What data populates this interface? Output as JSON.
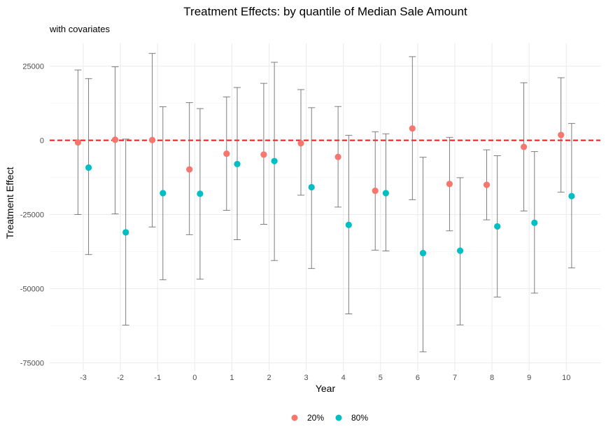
{
  "chart_data": {
    "type": "scatter",
    "title": "Treatment Effects: by quantile of Median Sale Amount",
    "subtitle": "with covariates",
    "xlabel": "Year",
    "ylabel": "Treatment Effect",
    "categories": [
      "-3",
      "-2",
      "-1",
      "0",
      "1",
      "2",
      "3",
      "4",
      "5",
      "6",
      "7",
      "8",
      "9",
      "10"
    ],
    "ylim": [
      -77500,
      30000
    ],
    "yticks": [
      25000,
      0,
      -25000,
      -50000,
      -75000
    ],
    "ytick_labels": [
      "25000",
      "0",
      "-25000",
      "-50000",
      "-75000"
    ],
    "reference_line": 0,
    "reference_color": "#e41a1c",
    "grid": true,
    "legend_position": "bottom",
    "series": [
      {
        "name": "20%",
        "color": "#f8766d",
        "values": [
          -700,
          200,
          100,
          -9800,
          -4500,
          -4800,
          -1000,
          -5600,
          -17000,
          4000,
          -14700,
          -15000,
          -2200,
          1800
        ],
        "lower": [
          -25000,
          -24800,
          -29200,
          -31800,
          -23600,
          -28300,
          -18500,
          -22500,
          -37000,
          -20000,
          -30500,
          -26800,
          -23800,
          -17500
        ],
        "upper": [
          23700,
          24800,
          29300,
          12700,
          14600,
          19200,
          17100,
          11400,
          2900,
          28200,
          1000,
          -3200,
          19400,
          21100
        ]
      },
      {
        "name": "80%",
        "color": "#00bfc4",
        "values": [
          -9200,
          -31000,
          -17800,
          -18000,
          -8000,
          -7000,
          -15800,
          -28500,
          -17800,
          -38000,
          -37200,
          -29000,
          -27800,
          -18800
        ],
        "lower": [
          -38500,
          -62300,
          -47000,
          -46800,
          -33500,
          -40500,
          -43200,
          -58500,
          -37300,
          -71300,
          -62200,
          -52800,
          -51500,
          -43000
        ],
        "upper": [
          20800,
          400,
          11300,
          10700,
          17800,
          26300,
          11000,
          1700,
          2200,
          -5700,
          -12600,
          -5200,
          -3800,
          5700
        ]
      }
    ]
  }
}
